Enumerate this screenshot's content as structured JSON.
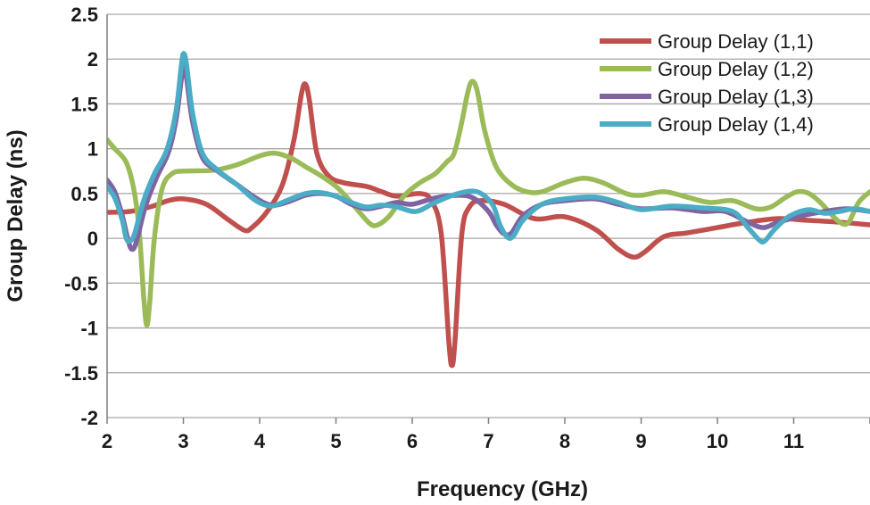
{
  "chart_data": {
    "type": "line",
    "title": "",
    "xlabel": "Frequency (GHz)",
    "ylabel": "Group Delay (ns)",
    "xlim": [
      2,
      12
    ],
    "ylim": [
      -2,
      2.5
    ],
    "xticks": [
      2,
      3,
      4,
      5,
      6,
      7,
      8,
      9,
      10,
      11
    ],
    "xtick_labels": [
      "2",
      "3",
      "4",
      "5",
      "6",
      "7",
      "8",
      "9",
      "10",
      "11"
    ],
    "yticks": [
      2.5,
      2,
      1.5,
      1,
      0.5,
      0,
      -0.5,
      -1,
      -1.5,
      -2
    ],
    "ytick_labels": [
      "2.5",
      "2",
      "1.5",
      "1",
      "0.5",
      "0",
      "-0.5",
      "-1",
      "-1.5",
      "-2"
    ],
    "grid": "horizontal",
    "legend_position": "top-right",
    "series": [
      {
        "name": "Group Delay (1,1)",
        "color": "#c0504d",
        "points": [
          [
            2,
            0.29
          ],
          [
            2.3,
            0.3
          ],
          [
            2.6,
            0.36
          ],
          [
            2.8,
            0.42
          ],
          [
            3.0,
            0.44
          ],
          [
            3.3,
            0.38
          ],
          [
            3.6,
            0.2
          ],
          [
            3.8,
            0.09
          ],
          [
            3.9,
            0.12
          ],
          [
            4.1,
            0.3
          ],
          [
            4.3,
            0.6
          ],
          [
            4.45,
            1.1
          ],
          [
            4.55,
            1.62
          ],
          [
            4.6,
            1.72
          ],
          [
            4.65,
            1.55
          ],
          [
            4.75,
            0.95
          ],
          [
            4.9,
            0.7
          ],
          [
            5.1,
            0.62
          ],
          [
            5.4,
            0.58
          ],
          [
            5.6,
            0.52
          ],
          [
            5.8,
            0.47
          ],
          [
            6.1,
            0.5
          ],
          [
            6.25,
            0.42
          ],
          [
            6.38,
            0.05
          ],
          [
            6.48,
            -1.15
          ],
          [
            6.52,
            -1.42
          ],
          [
            6.56,
            -1.15
          ],
          [
            6.65,
            0.05
          ],
          [
            6.75,
            0.35
          ],
          [
            6.9,
            0.42
          ],
          [
            7.2,
            0.38
          ],
          [
            7.6,
            0.22
          ],
          [
            8.0,
            0.24
          ],
          [
            8.4,
            0.1
          ],
          [
            8.7,
            -0.12
          ],
          [
            8.9,
            -0.21
          ],
          [
            9.05,
            -0.15
          ],
          [
            9.3,
            0.02
          ],
          [
            9.6,
            0.06
          ],
          [
            10.0,
            0.12
          ],
          [
            10.4,
            0.18
          ],
          [
            10.8,
            0.22
          ],
          [
            11.2,
            0.2
          ],
          [
            11.6,
            0.18
          ],
          [
            12.0,
            0.15
          ]
        ]
      },
      {
        "name": "Group Delay (1,2)",
        "color": "#9bbb59",
        "points": [
          [
            2,
            1.1
          ],
          [
            2.1,
            1.0
          ],
          [
            2.25,
            0.85
          ],
          [
            2.35,
            0.55
          ],
          [
            2.42,
            0.1
          ],
          [
            2.48,
            -0.65
          ],
          [
            2.52,
            -0.97
          ],
          [
            2.56,
            -0.7
          ],
          [
            2.62,
            0.0
          ],
          [
            2.72,
            0.55
          ],
          [
            2.85,
            0.72
          ],
          [
            3.0,
            0.75
          ],
          [
            3.4,
            0.76
          ],
          [
            3.7,
            0.82
          ],
          [
            4.0,
            0.92
          ],
          [
            4.2,
            0.95
          ],
          [
            4.4,
            0.9
          ],
          [
            4.6,
            0.8
          ],
          [
            4.8,
            0.7
          ],
          [
            5.0,
            0.58
          ],
          [
            5.15,
            0.45
          ],
          [
            5.3,
            0.3
          ],
          [
            5.45,
            0.16
          ],
          [
            5.55,
            0.15
          ],
          [
            5.7,
            0.25
          ],
          [
            5.9,
            0.48
          ],
          [
            6.1,
            0.62
          ],
          [
            6.3,
            0.72
          ],
          [
            6.45,
            0.85
          ],
          [
            6.55,
            0.95
          ],
          [
            6.65,
            1.3
          ],
          [
            6.72,
            1.6
          ],
          [
            6.78,
            1.75
          ],
          [
            6.85,
            1.65
          ],
          [
            6.95,
            1.2
          ],
          [
            7.1,
            0.8
          ],
          [
            7.3,
            0.6
          ],
          [
            7.5,
            0.52
          ],
          [
            7.7,
            0.52
          ],
          [
            8.0,
            0.62
          ],
          [
            8.25,
            0.67
          ],
          [
            8.5,
            0.62
          ],
          [
            8.8,
            0.5
          ],
          [
            9.0,
            0.48
          ],
          [
            9.3,
            0.52
          ],
          [
            9.6,
            0.46
          ],
          [
            9.9,
            0.4
          ],
          [
            10.2,
            0.42
          ],
          [
            10.5,
            0.33
          ],
          [
            10.7,
            0.35
          ],
          [
            10.9,
            0.46
          ],
          [
            11.05,
            0.52
          ],
          [
            11.2,
            0.5
          ],
          [
            11.35,
            0.4
          ],
          [
            11.5,
            0.26
          ],
          [
            11.62,
            0.17
          ],
          [
            11.72,
            0.18
          ],
          [
            11.85,
            0.4
          ],
          [
            12.0,
            0.52
          ]
        ]
      },
      {
        "name": "Group Delay (1,3)",
        "color": "#8064a2",
        "points": [
          [
            2,
            0.65
          ],
          [
            2.1,
            0.52
          ],
          [
            2.2,
            0.25
          ],
          [
            2.27,
            0.0
          ],
          [
            2.32,
            -0.12
          ],
          [
            2.38,
            -0.05
          ],
          [
            2.5,
            0.35
          ],
          [
            2.65,
            0.68
          ],
          [
            2.8,
            0.95
          ],
          [
            2.9,
            1.3
          ],
          [
            2.97,
            1.75
          ],
          [
            3.0,
            1.92
          ],
          [
            3.04,
            1.8
          ],
          [
            3.12,
            1.3
          ],
          [
            3.25,
            0.9
          ],
          [
            3.45,
            0.75
          ],
          [
            3.7,
            0.6
          ],
          [
            3.95,
            0.45
          ],
          [
            4.15,
            0.37
          ],
          [
            4.35,
            0.4
          ],
          [
            4.6,
            0.48
          ],
          [
            4.8,
            0.5
          ],
          [
            5.0,
            0.47
          ],
          [
            5.2,
            0.38
          ],
          [
            5.4,
            0.33
          ],
          [
            5.6,
            0.36
          ],
          [
            5.8,
            0.4
          ],
          [
            6.0,
            0.38
          ],
          [
            6.3,
            0.45
          ],
          [
            6.6,
            0.48
          ],
          [
            6.8,
            0.45
          ],
          [
            7.0,
            0.3
          ],
          [
            7.1,
            0.15
          ],
          [
            7.2,
            0.05
          ],
          [
            7.3,
            0.06
          ],
          [
            7.45,
            0.25
          ],
          [
            7.7,
            0.38
          ],
          [
            8.0,
            0.42
          ],
          [
            8.4,
            0.44
          ],
          [
            8.7,
            0.38
          ],
          [
            9.0,
            0.33
          ],
          [
            9.4,
            0.34
          ],
          [
            9.8,
            0.3
          ],
          [
            10.1,
            0.3
          ],
          [
            10.4,
            0.18
          ],
          [
            10.6,
            0.12
          ],
          [
            10.8,
            0.18
          ],
          [
            11.1,
            0.25
          ],
          [
            11.4,
            0.3
          ],
          [
            11.7,
            0.33
          ],
          [
            12.0,
            0.3
          ]
        ]
      },
      {
        "name": "Group Delay (1,4)",
        "color": "#4bacc6",
        "points": [
          [
            2,
            0.58
          ],
          [
            2.1,
            0.45
          ],
          [
            2.2,
            0.2
          ],
          [
            2.25,
            0.0
          ],
          [
            2.3,
            -0.03
          ],
          [
            2.36,
            0.05
          ],
          [
            2.48,
            0.42
          ],
          [
            2.62,
            0.72
          ],
          [
            2.78,
            0.98
          ],
          [
            2.9,
            1.4
          ],
          [
            2.97,
            1.9
          ],
          [
            3.0,
            2.06
          ],
          [
            3.04,
            1.95
          ],
          [
            3.12,
            1.4
          ],
          [
            3.25,
            0.95
          ],
          [
            3.45,
            0.76
          ],
          [
            3.7,
            0.6
          ],
          [
            3.95,
            0.42
          ],
          [
            4.15,
            0.36
          ],
          [
            4.35,
            0.42
          ],
          [
            4.6,
            0.5
          ],
          [
            4.8,
            0.51
          ],
          [
            5.0,
            0.47
          ],
          [
            5.2,
            0.4
          ],
          [
            5.4,
            0.35
          ],
          [
            5.6,
            0.37
          ],
          [
            5.8,
            0.35
          ],
          [
            6.05,
            0.3
          ],
          [
            6.3,
            0.4
          ],
          [
            6.6,
            0.5
          ],
          [
            6.85,
            0.52
          ],
          [
            7.05,
            0.38
          ],
          [
            7.15,
            0.15
          ],
          [
            7.25,
            0.01
          ],
          [
            7.33,
            0.03
          ],
          [
            7.45,
            0.2
          ],
          [
            7.7,
            0.38
          ],
          [
            8.0,
            0.44
          ],
          [
            8.4,
            0.46
          ],
          [
            8.7,
            0.4
          ],
          [
            9.0,
            0.32
          ],
          [
            9.4,
            0.36
          ],
          [
            9.8,
            0.34
          ],
          [
            10.2,
            0.3
          ],
          [
            10.4,
            0.12
          ],
          [
            10.55,
            -0.02
          ],
          [
            10.62,
            -0.03
          ],
          [
            10.75,
            0.1
          ],
          [
            10.95,
            0.25
          ],
          [
            11.2,
            0.32
          ],
          [
            11.4,
            0.28
          ],
          [
            11.6,
            0.3
          ],
          [
            11.8,
            0.33
          ],
          [
            12.0,
            0.3
          ]
        ]
      }
    ]
  }
}
